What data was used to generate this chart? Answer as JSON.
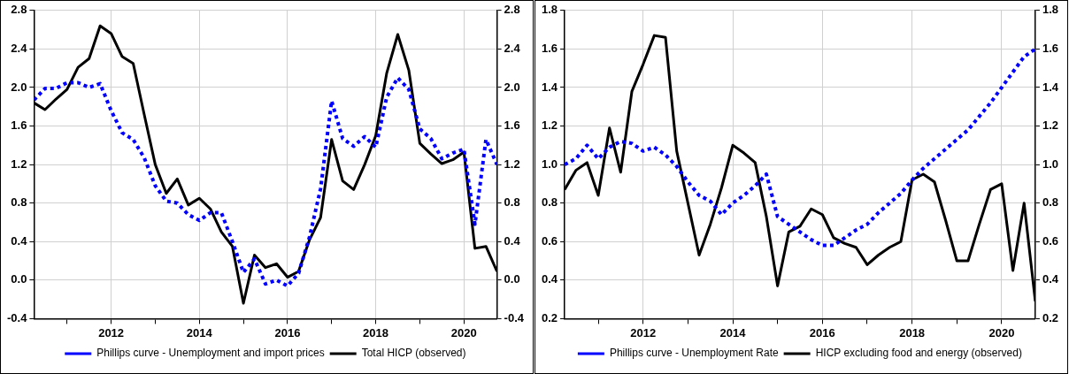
{
  "chart_data": [
    {
      "type": "line",
      "x": [
        2010.25,
        2010.5,
        2010.75,
        2011,
        2011.25,
        2011.5,
        2011.75,
        2012,
        2012.25,
        2012.5,
        2012.75,
        2013,
        2013.25,
        2013.5,
        2013.75,
        2014,
        2014.25,
        2014.5,
        2014.75,
        2015,
        2015.25,
        2015.5,
        2015.75,
        2016,
        2016.25,
        2016.5,
        2016.75,
        2017,
        2017.25,
        2017.5,
        2017.75,
        2018,
        2018.25,
        2018.5,
        2018.75,
        2019,
        2019.25,
        2019.5,
        2019.75,
        2020,
        2020.25,
        2020.5,
        2020.75
      ],
      "series": [
        {
          "name": "Phillips curve - Unemployment and import prices",
          "color": "#0000ff",
          "line_style": "dotted",
          "values": [
            1.87,
            1.99,
            1.99,
            2.05,
            2.05,
            2.0,
            2.04,
            1.76,
            1.53,
            1.46,
            1.27,
            0.98,
            0.82,
            0.8,
            0.68,
            0.62,
            0.7,
            0.7,
            0.4,
            0.08,
            0.22,
            -0.04,
            0.0,
            -0.06,
            0.07,
            0.45,
            0.95,
            1.86,
            1.47,
            1.39,
            1.49,
            1.38,
            1.9,
            2.1,
            1.98,
            1.57,
            1.47,
            1.26,
            1.32,
            1.36,
            0.58,
            1.46,
            1.2
          ]
        },
        {
          "name": "Total HICP (observed)",
          "color": "#000000",
          "line_style": "solid",
          "values": [
            1.84,
            1.77,
            1.88,
            1.98,
            2.21,
            2.3,
            2.64,
            2.56,
            2.32,
            2.25,
            1.72,
            1.2,
            0.9,
            1.05,
            0.78,
            0.85,
            0.74,
            0.5,
            0.35,
            -0.24,
            0.26,
            0.13,
            0.17,
            0.03,
            0.09,
            0.42,
            0.65,
            1.46,
            1.03,
            0.94,
            1.2,
            1.5,
            2.15,
            2.55,
            2.18,
            1.42,
            1.31,
            1.21,
            1.25,
            1.33,
            0.33,
            0.35,
            0.09
          ]
        }
      ],
      "xlim": [
        2010.25,
        2020.75
      ],
      "xticks": [
        {
          "value": 2011,
          "label": null
        },
        2012,
        {
          "value": 2013,
          "label": null
        },
        2014,
        {
          "value": 2015,
          "label": null
        },
        2016,
        {
          "value": 2017,
          "label": null
        },
        2018,
        {
          "value": 2019,
          "label": null
        },
        2020
      ],
      "ylim": [
        -0.4,
        2.8
      ],
      "yticks": [
        {
          "value": -0.4,
          "label": "-0.4"
        },
        {
          "value": 0,
          "label": "0.0"
        },
        {
          "value": 0.4,
          "label": "0.4"
        },
        {
          "value": 0.8,
          "label": "0.8"
        },
        {
          "value": 1.2,
          "label": "1.2"
        },
        {
          "value": 1.6,
          "label": "1.6"
        },
        {
          "value": 2,
          "label": "2.0"
        },
        {
          "value": 2.4,
          "label": "2.4"
        },
        {
          "value": 2.8,
          "label": "2.8"
        }
      ],
      "y2lim": [
        -0.4,
        2.8
      ],
      "y2ticks": [
        {
          "value": -0.4,
          "label": "-0.4"
        },
        {
          "value": 0,
          "label": "0.0"
        },
        {
          "value": 0.4,
          "label": "0.4"
        },
        {
          "value": 0.8,
          "label": "0.8"
        },
        {
          "value": 1.2,
          "label": "1.2"
        },
        {
          "value": 1.6,
          "label": "1.6"
        },
        {
          "value": 2,
          "label": "2.0"
        },
        {
          "value": 2.4,
          "label": "2.4"
        },
        {
          "value": 2.8,
          "label": "2.8"
        }
      ],
      "grid": true,
      "legend": "bottom",
      "marker": "none"
    },
    {
      "type": "line",
      "x": [
        2010.25,
        2010.5,
        2010.75,
        2011,
        2011.25,
        2011.5,
        2011.75,
        2012,
        2012.25,
        2012.5,
        2012.75,
        2013,
        2013.25,
        2013.5,
        2013.75,
        2014,
        2014.25,
        2014.5,
        2014.75,
        2015,
        2015.25,
        2015.5,
        2015.75,
        2016,
        2016.25,
        2016.5,
        2016.75,
        2017,
        2017.25,
        2017.5,
        2017.75,
        2018,
        2018.25,
        2018.5,
        2018.75,
        2019,
        2019.25,
        2019.5,
        2019.75,
        2020,
        2020.25,
        2020.5,
        2020.75
      ],
      "series": [
        {
          "name": "Phillips curve - Unemployment Rate",
          "color": "#0000ff",
          "line_style": "dotted",
          "values": [
            1.0,
            1.03,
            1.1,
            1.03,
            1.09,
            1.12,
            1.11,
            1.07,
            1.09,
            1.05,
            0.99,
            0.91,
            0.84,
            0.81,
            0.74,
            0.8,
            0.84,
            0.89,
            0.95,
            0.73,
            0.69,
            0.65,
            0.61,
            0.58,
            0.58,
            0.62,
            0.66,
            0.69,
            0.75,
            0.8,
            0.85,
            0.92,
            0.98,
            1.03,
            1.08,
            1.13,
            1.18,
            1.25,
            1.32,
            1.4,
            1.48,
            1.56,
            1.6
          ]
        },
        {
          "name": "HICP excluding food and energy (observed)",
          "color": "#000000",
          "line_style": "solid",
          "values": [
            0.87,
            0.97,
            1.01,
            0.84,
            1.19,
            0.96,
            1.38,
            1.52,
            1.67,
            1.66,
            1.07,
            0.8,
            0.53,
            0.69,
            0.88,
            1.1,
            1.06,
            1.01,
            0.73,
            0.37,
            0.65,
            0.68,
            0.77,
            0.74,
            0.62,
            0.59,
            0.57,
            0.48,
            0.53,
            0.57,
            0.6,
            0.92,
            0.95,
            0.91,
            0.71,
            0.5,
            0.5,
            0.69,
            0.87,
            0.9,
            0.45,
            0.8,
            0.29
          ]
        }
      ],
      "xlim": [
        2010.25,
        2020.75
      ],
      "xticks": [
        {
          "value": 2011,
          "label": null
        },
        2012,
        {
          "value": 2013,
          "label": null
        },
        2014,
        {
          "value": 2015,
          "label": null
        },
        2016,
        {
          "value": 2017,
          "label": null
        },
        2018,
        {
          "value": 2019,
          "label": null
        },
        2020
      ],
      "ylim": [
        0.2,
        1.8
      ],
      "yticks": [
        {
          "value": 0.2,
          "label": "0.2"
        },
        {
          "value": 0.4,
          "label": "0.4"
        },
        {
          "value": 0.6,
          "label": "0.6"
        },
        {
          "value": 0.8,
          "label": "0.8"
        },
        {
          "value": 1,
          "label": "1.0"
        },
        {
          "value": 1.2,
          "label": "1.2"
        },
        {
          "value": 1.4,
          "label": "1.4"
        },
        {
          "value": 1.6,
          "label": "1.6"
        },
        {
          "value": 1.8,
          "label": "1.8"
        }
      ],
      "y2lim": [
        0.2,
        1.8
      ],
      "y2ticks": [
        {
          "value": 0.2,
          "label": "0.2"
        },
        {
          "value": 0.4,
          "label": "0.4"
        },
        {
          "value": 0.6,
          "label": "0.6"
        },
        {
          "value": 0.8,
          "label": "0.8"
        },
        {
          "value": 1,
          "label": "1.0"
        },
        {
          "value": 1.2,
          "label": "1.2"
        },
        {
          "value": 1.4,
          "label": "1.4"
        },
        {
          "value": 1.6,
          "label": "1.6"
        },
        {
          "value": 1.8,
          "label": "1.8"
        }
      ],
      "grid": true,
      "legend": "bottom",
      "marker": "none"
    }
  ]
}
